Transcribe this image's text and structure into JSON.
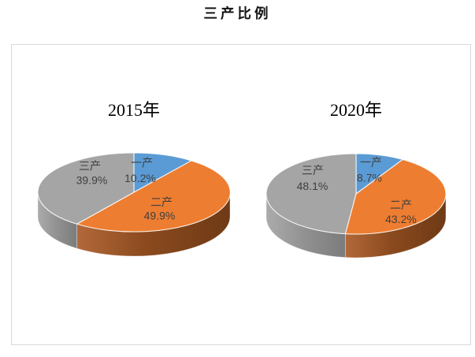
{
  "title": "三产比例",
  "frame_border_color": "#D9D9D9",
  "chart_data": [
    {
      "type": "pie",
      "style": "3d",
      "title": "2015年",
      "labels": [
        "一产",
        "二产",
        "三产"
      ],
      "values": [
        10.2,
        49.9,
        39.9
      ],
      "unit": "%",
      "colors": [
        "#5B9BD5",
        "#ED7D31",
        "#A5A5A5"
      ],
      "start_angle_deg": 0,
      "direction": "clockwise",
      "label_position": "inside",
      "legend": "none"
    },
    {
      "type": "pie",
      "style": "3d",
      "title": "2020年",
      "labels": [
        "一产",
        "二产",
        "三产"
      ],
      "values": [
        8.7,
        43.2,
        48.1
      ],
      "unit": "%",
      "colors": [
        "#5B9BD5",
        "#ED7D31",
        "#A5A5A5"
      ],
      "start_angle_deg": 0,
      "direction": "clockwise",
      "label_position": "inside",
      "legend": "none"
    }
  ]
}
